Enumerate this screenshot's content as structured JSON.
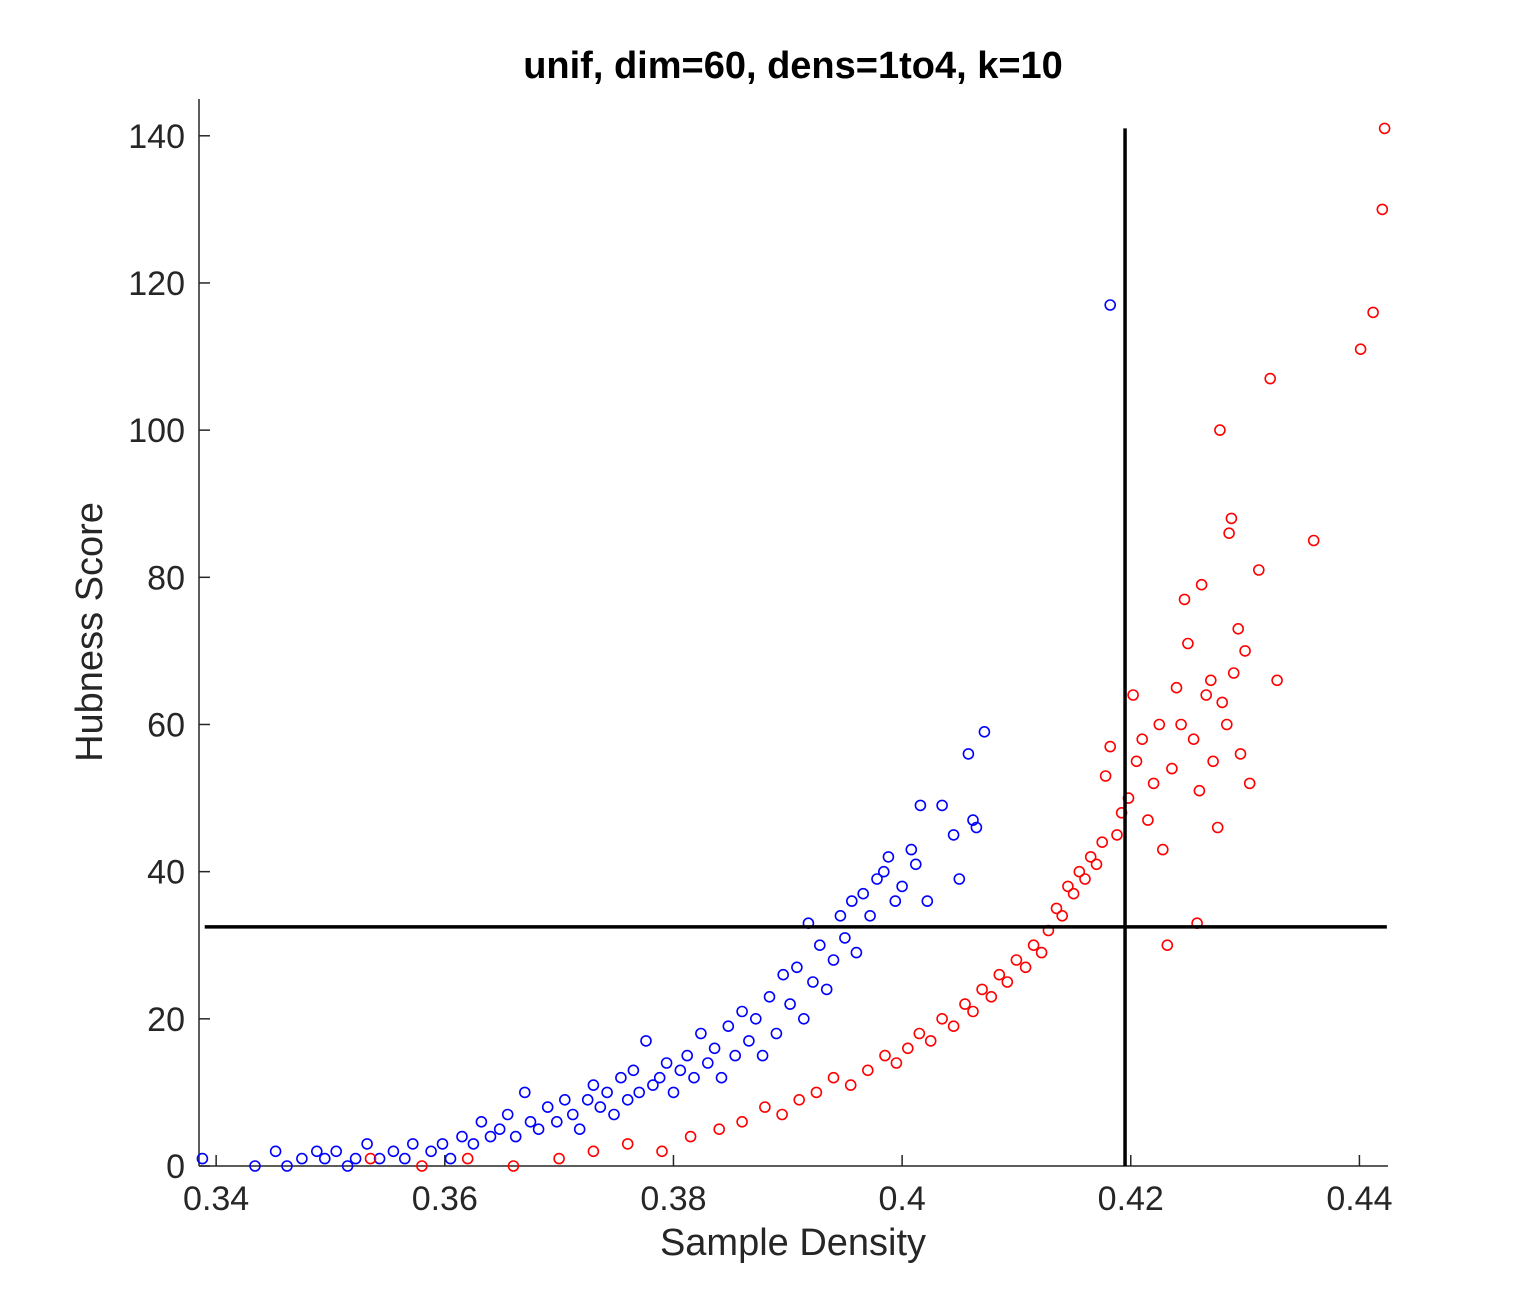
{
  "chart_data": {
    "type": "scatter",
    "title": "unif, dim=60, dens=1to4, k=10",
    "xlabel": "Sample Density",
    "ylabel": "Hubness Score",
    "xlim": [
      0.3385,
      0.4425
    ],
    "ylim": [
      0,
      145
    ],
    "xticks": [
      0.34,
      0.36,
      0.38,
      0.4,
      0.42,
      0.44
    ],
    "xtick_labels": [
      "0.34",
      "0.36",
      "0.38",
      "0.4",
      "0.42",
      "0.44"
    ],
    "yticks": [
      0,
      20,
      40,
      60,
      80,
      100,
      120,
      140
    ],
    "ytick_labels": [
      "0",
      "20",
      "40",
      "60",
      "80",
      "100",
      "120",
      "140"
    ],
    "grid": false,
    "legend": "none",
    "marker": "open-circle",
    "reference_lines": {
      "vertical_x": 0.4195,
      "vertical_y_range": [
        0,
        141
      ],
      "horizontal_y": 32.5,
      "horizontal_x_range": [
        0.3385,
        0.4425
      ],
      "color": "#000000"
    },
    "series": [
      {
        "color": "#0000ff",
        "points": [
          [
            0.3388,
            1
          ],
          [
            0.3434,
            0
          ],
          [
            0.3452,
            2
          ],
          [
            0.3462,
            0
          ],
          [
            0.3475,
            1
          ],
          [
            0.3488,
            2
          ],
          [
            0.3495,
            1
          ],
          [
            0.3505,
            2
          ],
          [
            0.3515,
            0
          ],
          [
            0.3522,
            1
          ],
          [
            0.3532,
            3
          ],
          [
            0.3543,
            1
          ],
          [
            0.3555,
            2
          ],
          [
            0.3565,
            1
          ],
          [
            0.3572,
            3
          ],
          [
            0.3588,
            2
          ],
          [
            0.3598,
            3
          ],
          [
            0.3605,
            1
          ],
          [
            0.3615,
            4
          ],
          [
            0.3625,
            3
          ],
          [
            0.3632,
            6
          ],
          [
            0.364,
            4
          ],
          [
            0.3648,
            5
          ],
          [
            0.3655,
            7
          ],
          [
            0.3662,
            4
          ],
          [
            0.367,
            10
          ],
          [
            0.3675,
            6
          ],
          [
            0.3682,
            5
          ],
          [
            0.369,
            8
          ],
          [
            0.3698,
            6
          ],
          [
            0.3705,
            9
          ],
          [
            0.3712,
            7
          ],
          [
            0.3718,
            5
          ],
          [
            0.3725,
            9
          ],
          [
            0.373,
            11
          ],
          [
            0.3736,
            8
          ],
          [
            0.3742,
            10
          ],
          [
            0.3748,
            7
          ],
          [
            0.3754,
            12
          ],
          [
            0.376,
            9
          ],
          [
            0.3765,
            13
          ],
          [
            0.377,
            10
          ],
          [
            0.3776,
            17
          ],
          [
            0.3782,
            11
          ],
          [
            0.3788,
            12
          ],
          [
            0.3794,
            14
          ],
          [
            0.38,
            10
          ],
          [
            0.3806,
            13
          ],
          [
            0.3812,
            15
          ],
          [
            0.3818,
            12
          ],
          [
            0.3824,
            18
          ],
          [
            0.383,
            14
          ],
          [
            0.3836,
            16
          ],
          [
            0.3842,
            12
          ],
          [
            0.3848,
            19
          ],
          [
            0.3854,
            15
          ],
          [
            0.386,
            21
          ],
          [
            0.3866,
            17
          ],
          [
            0.3872,
            20
          ],
          [
            0.3878,
            15
          ],
          [
            0.3884,
            23
          ],
          [
            0.389,
            18
          ],
          [
            0.3896,
            26
          ],
          [
            0.3902,
            22
          ],
          [
            0.3908,
            27
          ],
          [
            0.3914,
            20
          ],
          [
            0.3918,
            33
          ],
          [
            0.3922,
            25
          ],
          [
            0.3928,
            30
          ],
          [
            0.3934,
            24
          ],
          [
            0.394,
            28
          ],
          [
            0.3946,
            34
          ],
          [
            0.395,
            31
          ],
          [
            0.3956,
            36
          ],
          [
            0.396,
            29
          ],
          [
            0.3966,
            37
          ],
          [
            0.3972,
            34
          ],
          [
            0.3978,
            39
          ],
          [
            0.3984,
            40
          ],
          [
            0.3988,
            42
          ],
          [
            0.3994,
            36
          ],
          [
            0.4,
            38
          ],
          [
            0.4008,
            43
          ],
          [
            0.4012,
            41
          ],
          [
            0.4016,
            49
          ],
          [
            0.4022,
            36
          ],
          [
            0.4035,
            49
          ],
          [
            0.4045,
            45
          ],
          [
            0.405,
            39
          ],
          [
            0.4058,
            56
          ],
          [
            0.4062,
            47
          ],
          [
            0.4065,
            46
          ],
          [
            0.4072,
            59
          ],
          [
            0.4182,
            117
          ]
        ]
      },
      {
        "color": "#ff0000",
        "points": [
          [
            0.3535,
            1
          ],
          [
            0.358,
            0
          ],
          [
            0.362,
            1
          ],
          [
            0.366,
            0
          ],
          [
            0.37,
            1
          ],
          [
            0.373,
            2
          ],
          [
            0.376,
            3
          ],
          [
            0.379,
            2
          ],
          [
            0.3815,
            4
          ],
          [
            0.384,
            5
          ],
          [
            0.386,
            6
          ],
          [
            0.388,
            8
          ],
          [
            0.3895,
            7
          ],
          [
            0.391,
            9
          ],
          [
            0.3925,
            10
          ],
          [
            0.394,
            12
          ],
          [
            0.3955,
            11
          ],
          [
            0.397,
            13
          ],
          [
            0.3985,
            15
          ],
          [
            0.3995,
            14
          ],
          [
            0.4005,
            16
          ],
          [
            0.4015,
            18
          ],
          [
            0.4025,
            17
          ],
          [
            0.4035,
            20
          ],
          [
            0.4045,
            19
          ],
          [
            0.4055,
            22
          ],
          [
            0.4062,
            21
          ],
          [
            0.407,
            24
          ],
          [
            0.4078,
            23
          ],
          [
            0.4085,
            26
          ],
          [
            0.4092,
            25
          ],
          [
            0.41,
            28
          ],
          [
            0.4108,
            27
          ],
          [
            0.4115,
            30
          ],
          [
            0.4122,
            29
          ],
          [
            0.4128,
            32
          ],
          [
            0.4135,
            35
          ],
          [
            0.414,
            34
          ],
          [
            0.4145,
            38
          ],
          [
            0.415,
            37
          ],
          [
            0.4155,
            40
          ],
          [
            0.416,
            39
          ],
          [
            0.4165,
            42
          ],
          [
            0.417,
            41
          ],
          [
            0.4175,
            44
          ],
          [
            0.4178,
            53
          ],
          [
            0.4182,
            57
          ],
          [
            0.4188,
            45
          ],
          [
            0.4192,
            48
          ],
          [
            0.4198,
            50
          ],
          [
            0.4202,
            64
          ],
          [
            0.4205,
            55
          ],
          [
            0.421,
            58
          ],
          [
            0.4215,
            47
          ],
          [
            0.422,
            52
          ],
          [
            0.4225,
            60
          ],
          [
            0.4228,
            43
          ],
          [
            0.4232,
            30
          ],
          [
            0.4236,
            54
          ],
          [
            0.424,
            65
          ],
          [
            0.4244,
            60
          ],
          [
            0.4247,
            77
          ],
          [
            0.425,
            71
          ],
          [
            0.4255,
            58
          ],
          [
            0.4258,
            33
          ],
          [
            0.426,
            51
          ],
          [
            0.4262,
            79
          ],
          [
            0.4266,
            64
          ],
          [
            0.427,
            66
          ],
          [
            0.4272,
            55
          ],
          [
            0.4276,
            46
          ],
          [
            0.4278,
            100
          ],
          [
            0.428,
            63
          ],
          [
            0.4284,
            60
          ],
          [
            0.4286,
            86
          ],
          [
            0.4288,
            88
          ],
          [
            0.429,
            67
          ],
          [
            0.4294,
            73
          ],
          [
            0.4296,
            56
          ],
          [
            0.43,
            70
          ],
          [
            0.4304,
            52
          ],
          [
            0.4312,
            81
          ],
          [
            0.4322,
            107
          ],
          [
            0.4328,
            66
          ],
          [
            0.436,
            85
          ],
          [
            0.4401,
            111
          ],
          [
            0.4412,
            116
          ],
          [
            0.442,
            130
          ],
          [
            0.4422,
            141
          ]
        ]
      }
    ]
  }
}
